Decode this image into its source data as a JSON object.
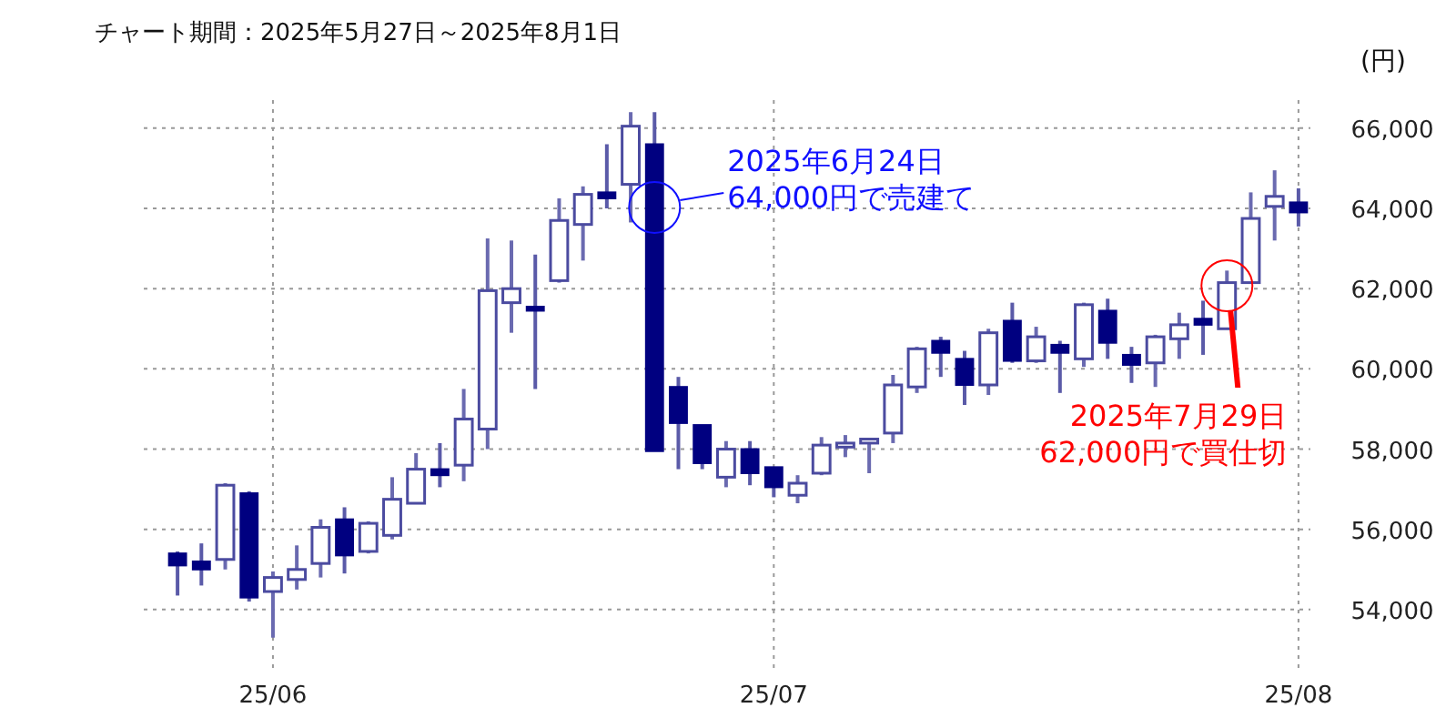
{
  "chart_data": {
    "type": "candlestick",
    "title": "チャート期間：2025年5月27日～2025年8月1日",
    "ylabel": "(円)",
    "categories": [
      null,
      null,
      null,
      null,
      "25/06",
      null,
      null,
      null,
      null,
      null,
      null,
      null,
      null,
      null,
      null,
      null,
      null,
      null,
      null,
      null,
      null,
      null,
      null,
      null,
      null,
      "25/07",
      null,
      null,
      null,
      null,
      null,
      null,
      null,
      null,
      null,
      null,
      null,
      null,
      null,
      null,
      null,
      null,
      null,
      null,
      null,
      null,
      null,
      "25/08"
    ],
    "series": [
      {
        "color": "#000080",
        "colors": [
          "#000080",
          "#000080",
          "#ffffff",
          "#000080",
          "#ffffff",
          "#ffffff",
          "#ffffff",
          "#000080",
          "#ffffff",
          "#ffffff",
          "#ffffff",
          "#000080",
          "#ffffff",
          "#ffffff",
          "#ffffff",
          "#000080",
          "#ffffff",
          "#ffffff",
          "#000080",
          "#ffffff",
          "#000080",
          "#000080",
          "#000080",
          "#ffffff",
          "#000080",
          "#000080",
          "#ffffff",
          "#ffffff",
          "#ffffff",
          "#ffffff",
          "#ffffff",
          "#ffffff",
          "#000080",
          "#000080",
          "#ffffff",
          "#000080",
          "#ffffff",
          "#000080",
          "#ffffff",
          "#000080",
          "#000080",
          "#ffffff",
          "#ffffff",
          "#000080",
          "#ffffff",
          "#ffffff",
          "#ffffff",
          "#000080"
        ],
        "ohlc": [
          [
            55400,
            55450,
            54350,
            55100
          ],
          [
            55200,
            55650,
            54600,
            55000
          ],
          [
            55250,
            57150,
            55000,
            57100
          ],
          [
            56900,
            56950,
            54200,
            54300
          ],
          [
            54450,
            54950,
            53300,
            54800
          ],
          [
            54750,
            55600,
            54500,
            55000
          ],
          [
            55150,
            56250,
            54800,
            56050
          ],
          [
            56250,
            56550,
            54900,
            55350
          ],
          [
            55450,
            56200,
            55400,
            56150
          ],
          [
            55850,
            57300,
            55750,
            56750
          ],
          [
            56650,
            57900,
            56650,
            57500
          ],
          [
            57500,
            58150,
            57050,
            57350
          ],
          [
            57600,
            59500,
            57200,
            58750
          ],
          [
            58500,
            63250,
            58000,
            61950
          ],
          [
            61650,
            63200,
            60900,
            62000
          ],
          [
            61550,
            62850,
            59500,
            61450
          ],
          [
            62200,
            64250,
            62150,
            63700
          ],
          [
            63600,
            64550,
            62700,
            64350
          ],
          [
            64400,
            65600,
            64000,
            64250
          ],
          [
            64600,
            66400,
            63650,
            66050
          ],
          [
            65600,
            66400,
            57950,
            57950
          ],
          [
            59550,
            59800,
            57500,
            58650
          ],
          [
            58600,
            58600,
            57500,
            57650
          ],
          [
            57300,
            58200,
            57050,
            58000
          ],
          [
            58000,
            58200,
            57100,
            57400
          ],
          [
            57550,
            57550,
            56800,
            57050
          ],
          [
            56850,
            57350,
            56650,
            57150
          ],
          [
            57400,
            58300,
            57350,
            58100
          ],
          [
            58050,
            58350,
            57800,
            58150
          ],
          [
            58150,
            58250,
            57400,
            58250
          ],
          [
            58400,
            59850,
            58150,
            59600
          ],
          [
            59550,
            60550,
            59400,
            60500
          ],
          [
            60700,
            60800,
            59800,
            60400
          ],
          [
            60250,
            60450,
            59100,
            59600
          ],
          [
            59600,
            61000,
            59350,
            60900
          ],
          [
            61200,
            61650,
            60150,
            60200
          ],
          [
            60200,
            61050,
            60150,
            60800
          ],
          [
            60600,
            60700,
            59400,
            60400
          ],
          [
            60250,
            61650,
            60050,
            61600
          ],
          [
            61450,
            61750,
            60250,
            60650
          ],
          [
            60350,
            60550,
            59650,
            60100
          ],
          [
            60150,
            60850,
            59550,
            60800
          ],
          [
            60750,
            61400,
            60250,
            61100
          ],
          [
            61250,
            61700,
            60350,
            61100
          ],
          [
            61000,
            62450,
            61000,
            62150
          ],
          [
            62150,
            64400,
            62150,
            63750
          ],
          [
            64050,
            64950,
            63200,
            64300
          ],
          [
            64150,
            64500,
            63550,
            63900
          ]
        ]
      }
    ],
    "ylim": [
      52500,
      66700
    ],
    "yticks": [
      {
        "value": 54000,
        "label": "54,000"
      },
      {
        "value": 56000,
        "label": "56,000"
      },
      {
        "value": 58000,
        "label": "58,000"
      },
      {
        "value": 60000,
        "label": "60,000"
      },
      {
        "value": 62000,
        "label": "62,000"
      },
      {
        "value": 64000,
        "label": "64,000"
      },
      {
        "value": 66000,
        "label": "66,000"
      }
    ],
    "grid": true,
    "annotations": [
      "2025年6月24日\n64,000円で売建て",
      "2025年7月29日\n62,000円で買仕切"
    ]
  }
}
